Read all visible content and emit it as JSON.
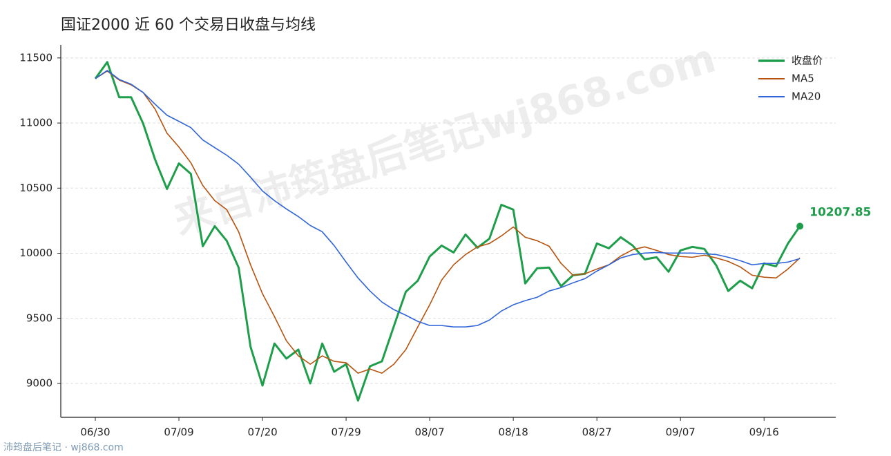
{
  "chart_data": {
    "type": "line",
    "title": "国证2000 近 60 个交易日收盘与均线",
    "watermark": "来自沛筠盘后笔记wj868.com",
    "footer": "沛筠盘后笔记 · wj868.com",
    "categories": [
      "06/30",
      null,
      null,
      null,
      null,
      null,
      null,
      "07/09",
      null,
      null,
      null,
      null,
      null,
      null,
      "07/20",
      null,
      null,
      null,
      null,
      null,
      null,
      "07/29",
      null,
      null,
      null,
      null,
      null,
      null,
      "08/07",
      null,
      null,
      null,
      null,
      null,
      null,
      "08/18",
      null,
      null,
      null,
      null,
      null,
      null,
      "08/27",
      null,
      null,
      null,
      null,
      null,
      null,
      "09/07",
      null,
      null,
      null,
      null,
      null,
      null,
      "09/16",
      null,
      null,
      null
    ],
    "series": [
      {
        "name": "收盘价",
        "color": "#1e9e4a",
        "values": [
          11341,
          11468,
          11198,
          11198,
          10997,
          10721,
          10494,
          10690,
          10610,
          10054,
          10208,
          10096,
          9890,
          9281,
          8984,
          9307,
          9191,
          9260,
          9000,
          9307,
          9090,
          9148,
          8868,
          9132,
          9170,
          9440,
          9704,
          9789,
          9975,
          10059,
          10006,
          10144,
          10043,
          10112,
          10372,
          10335,
          9768,
          9885,
          9890,
          9747,
          9831,
          9842,
          10075,
          10038,
          10123,
          10059,
          9953,
          9969,
          9858,
          10022,
          10049,
          10033,
          9906,
          9710,
          9789,
          9731,
          9922,
          9900,
          10075,
          10207.85
        ]
      },
      {
        "name": "MA5",
        "color": "#b5530f",
        "values": [
          11341,
          11399,
          11330,
          11293,
          11235,
          11108,
          10922,
          10816,
          10695,
          10520,
          10404,
          10335,
          10165,
          9911,
          9689,
          9514,
          9328,
          9212,
          9148,
          9212,
          9170,
          9159,
          9079,
          9111,
          9079,
          9148,
          9260,
          9434,
          9604,
          9794,
          9911,
          9990,
          10049,
          10075,
          10133,
          10202,
          10123,
          10096,
          10054,
          9922,
          9831,
          9842,
          9879,
          9911,
          9979,
          10027,
          10049,
          10022,
          9990,
          9975,
          9969,
          9985,
          9964,
          9937,
          9895,
          9831,
          9816,
          9810,
          9879,
          9964
        ]
      },
      {
        "name": "MA20",
        "color": "#2f65d9",
        "values": [
          11341,
          11404,
          11335,
          11298,
          11235,
          11145,
          11060,
          11013,
          10965,
          10870,
          10811,
          10753,
          10684,
          10584,
          10478,
          10404,
          10340,
          10282,
          10213,
          10165,
          10059,
          9932,
          9810,
          9710,
          9625,
          9567,
          9524,
          9477,
          9445,
          9445,
          9434,
          9434,
          9445,
          9487,
          9556,
          9604,
          9636,
          9662,
          9710,
          9736,
          9773,
          9805,
          9863,
          9911,
          9964,
          9990,
          10001,
          10006,
          10001,
          10001,
          10001,
          9996,
          9990,
          9969,
          9943,
          9911,
          9922,
          9922,
          9932,
          9959
        ]
      }
    ],
    "ylim": [
      8740,
      11600
    ],
    "yticks": [
      9000,
      9500,
      10000,
      10500,
      11000,
      11500
    ],
    "grid": true,
    "legend": "upper right"
  }
}
